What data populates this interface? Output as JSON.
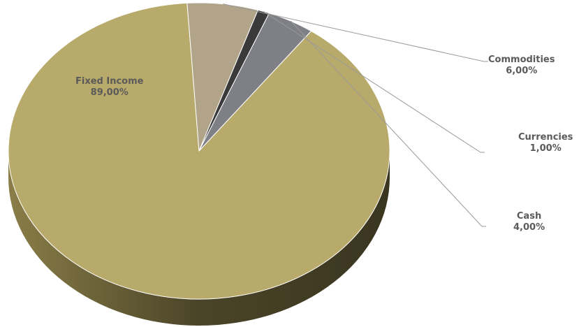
{
  "chart_data": {
    "type": "pie",
    "style": "3d",
    "title": "",
    "labels": [
      "Fixed Income",
      "Commodities",
      "Currencies",
      "Cash"
    ],
    "values": [
      89.0,
      6.0,
      1.0,
      4.0
    ],
    "value_labels": [
      "89,00%",
      "6,00%",
      "1,00%",
      "4,00%"
    ],
    "colors": [
      "#b8aa6a",
      "#b1a489",
      "#3a3a3a",
      "#7f8085"
    ],
    "side_colors": [
      "#5d5535",
      "#6b6352",
      "#1e1e1e",
      "#45464a"
    ],
    "start_angle_deg": -54,
    "direction": "clockwise",
    "legend": "none",
    "data_labels": "category-and-percent"
  }
}
